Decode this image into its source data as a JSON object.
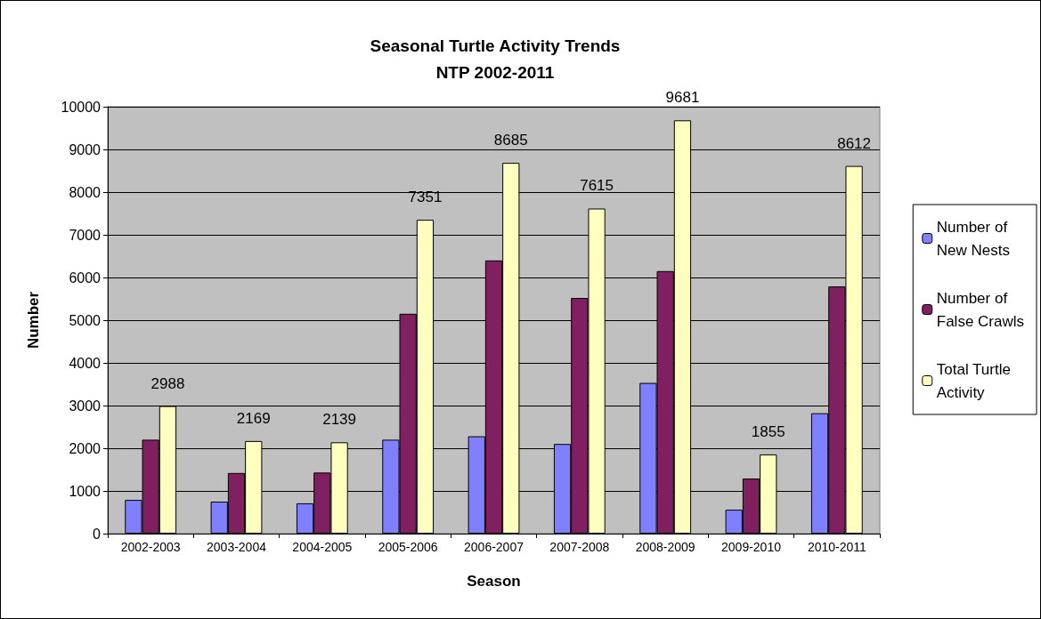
{
  "chart_data": {
    "type": "bar",
    "title": "Seasonal Turtle Activity Trends\nNTP 2002-2011",
    "xlabel": "Season",
    "ylabel": "Number",
    "categories": [
      "2002-2003",
      "2003-2004",
      "2004-2005",
      "2005-2006",
      "2006-2007",
      "2007-2008",
      "2008-2009",
      "2009-2010",
      "2010-2011"
    ],
    "series": [
      {
        "name": "Number of New Nests",
        "color": "#8080ff",
        "values": [
          790,
          750,
          710,
          2200,
          2280,
          2100,
          3530,
          560,
          2820
        ]
      },
      {
        "name": "Number of False Crawls",
        "color": "#802060",
        "values": [
          2200,
          1420,
          1430,
          5150,
          6400,
          5520,
          6150,
          1290,
          5790
        ]
      },
      {
        "name": "Total Turtle Activity",
        "color": "#ffffc0",
        "values": [
          2988,
          2169,
          2139,
          7351,
          8685,
          7615,
          9681,
          1855,
          8612
        ],
        "value_labels": [
          "2988",
          "2169",
          "2139",
          "7351",
          "8685",
          "7615",
          "9681",
          "1855",
          "8612"
        ]
      }
    ],
    "ylim": [
      0,
      10000
    ],
    "yticks": [
      0,
      1000,
      2000,
      3000,
      4000,
      5000,
      6000,
      7000,
      8000,
      9000,
      10000
    ],
    "grid": "y",
    "legend": "right"
  }
}
